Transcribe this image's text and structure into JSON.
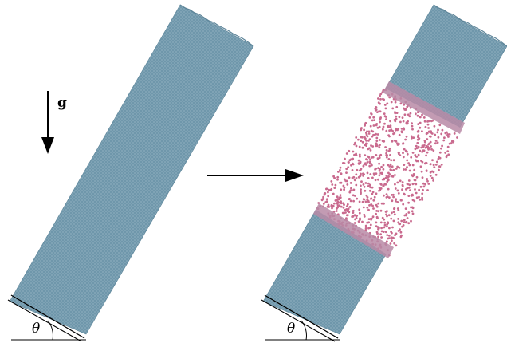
{
  "gravity_label": "g",
  "angle_label_left": "θ",
  "angle_label_right": "θ",
  "colors": {
    "granular": "#6f97ab",
    "granular_light": "#a9c2cf",
    "fluidized": "#c96a8e",
    "ink": "#000000"
  },
  "panels": [
    {
      "state": "packed"
    },
    {
      "state": "partially-fluidized"
    }
  ]
}
